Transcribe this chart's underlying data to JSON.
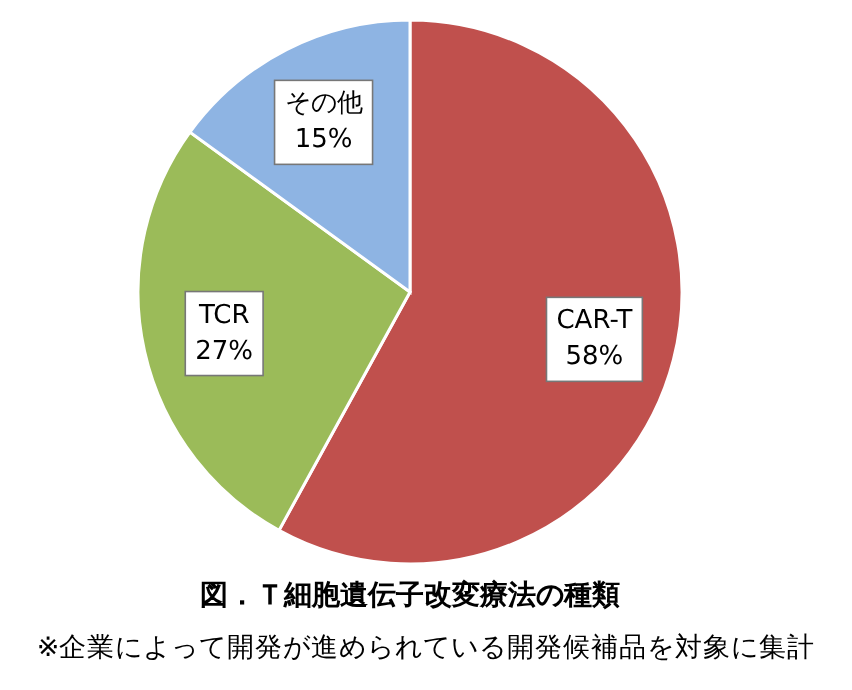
{
  "chart_data": {
    "type": "pie",
    "title": "図．Ｔ細胞遺伝子改変療法の種類",
    "annotations": [
      "※企業によって開発が進められている開発候補品を対象に集計"
    ],
    "categories": [
      "CAR-T",
      "TCR",
      "その他"
    ],
    "values": [
      58,
      27,
      15
    ],
    "value_labels": [
      "58%",
      "27%",
      "15%"
    ],
    "colors": [
      "#c0504d",
      "#9bbb59",
      "#8eb4e3"
    ]
  }
}
